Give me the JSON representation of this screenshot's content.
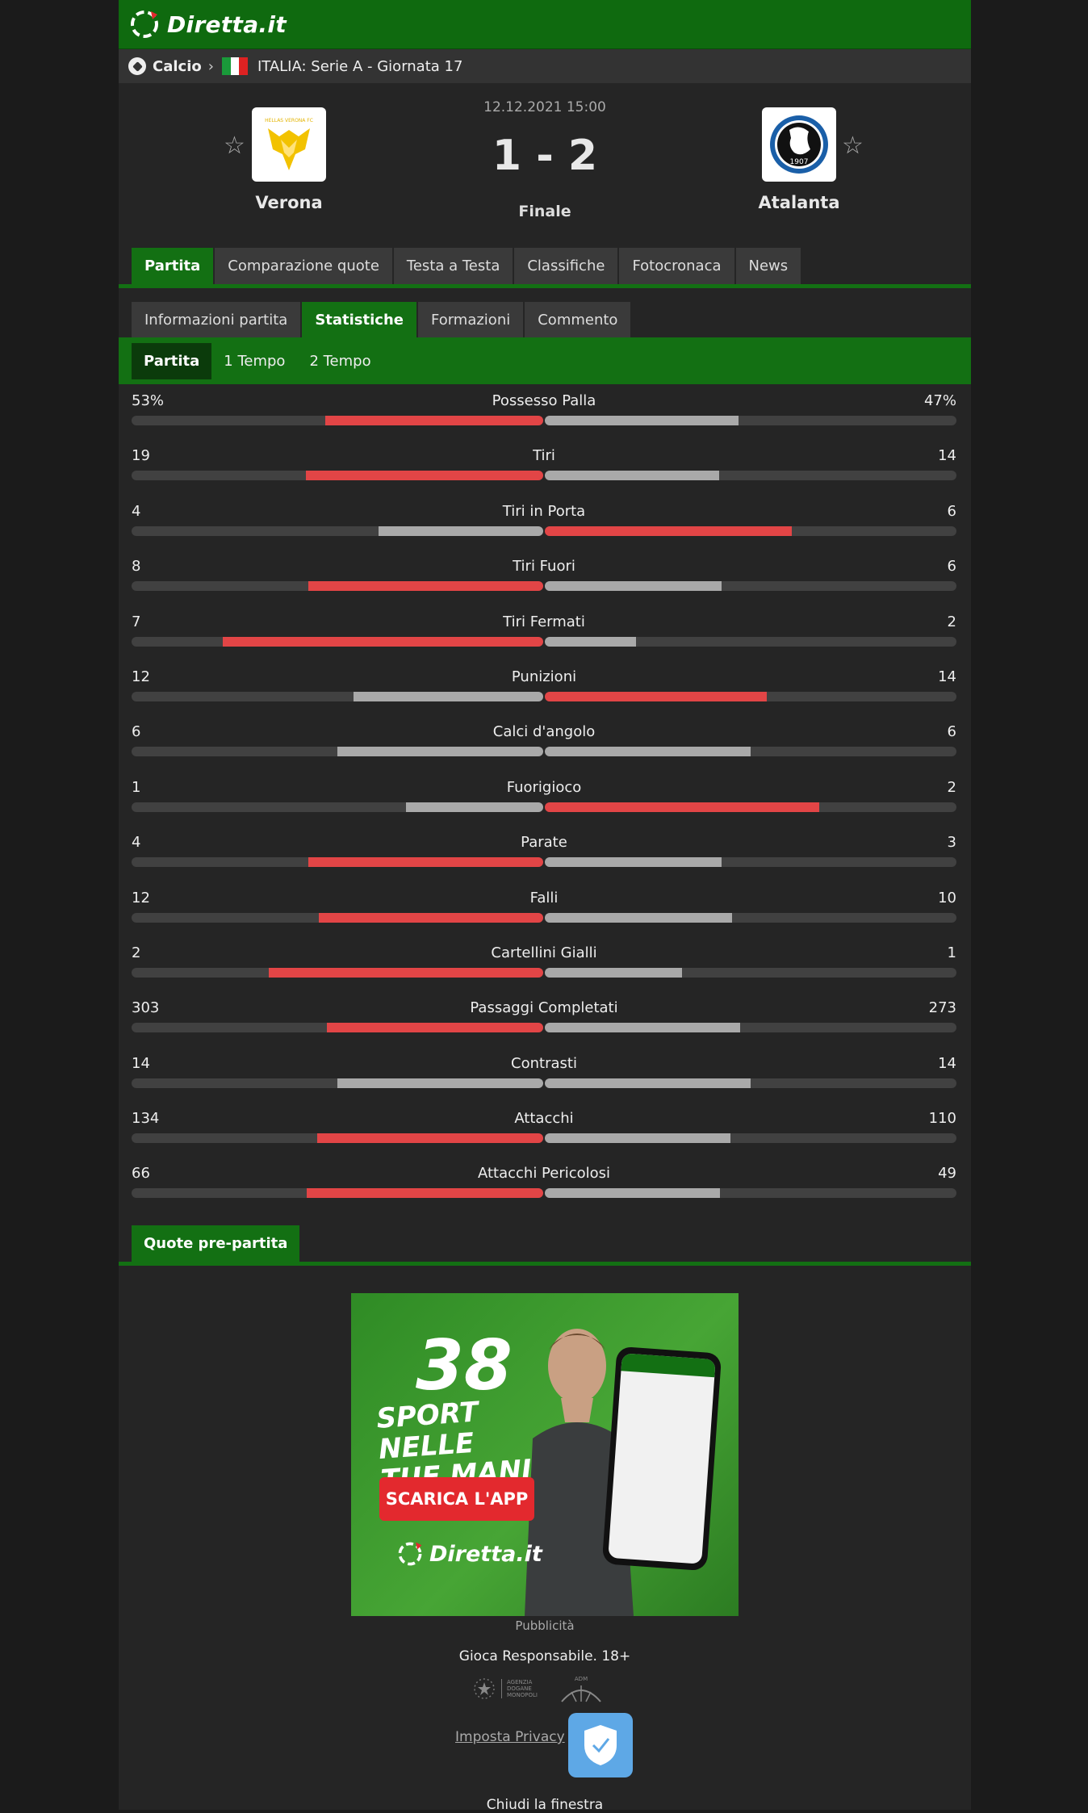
{
  "header": {
    "logo_text": "Diretta.it"
  },
  "breadcrumb": {
    "sport": "Calcio",
    "competition": "ITALIA: Serie A - Giornata 17"
  },
  "colors": {
    "accent": "#137013",
    "win": "#e24546",
    "lose": "#a9a9a9"
  },
  "match": {
    "datetime": "12.12.2021 15:00",
    "score": "1 - 2",
    "status": "Finale",
    "home": {
      "name": "Verona",
      "logo_icon": "verona-crest"
    },
    "away": {
      "name": "Atalanta",
      "logo_icon": "atalanta-crest"
    }
  },
  "tabs": [
    "Partita",
    "Comparazione quote",
    "Testa a Testa",
    "Classifiche",
    "Fotocronaca",
    "News"
  ],
  "tabs_active": 0,
  "subtabs": [
    "Informazioni partita",
    "Statistiche",
    "Formazioni",
    "Commento"
  ],
  "subtabs_active": 1,
  "periods": [
    "Partita",
    "1 Tempo",
    "2 Tempo"
  ],
  "periods_active": 0,
  "stats": [
    {
      "label": "Possesso Palla",
      "home": "53%",
      "away": "47%",
      "home_share": 0.53,
      "away_share": 0.47
    },
    {
      "label": "Tiri",
      "home": "19",
      "away": "14",
      "home_share": 0.5758,
      "away_share": 0.4242
    },
    {
      "label": "Tiri in Porta",
      "home": "4",
      "away": "6",
      "home_share": 0.4,
      "away_share": 0.6
    },
    {
      "label": "Tiri Fuori",
      "home": "8",
      "away": "6",
      "home_share": 0.5714,
      "away_share": 0.4286
    },
    {
      "label": "Tiri Fermati",
      "home": "7",
      "away": "2",
      "home_share": 0.7778,
      "away_share": 0.2222
    },
    {
      "label": "Punizioni",
      "home": "12",
      "away": "14",
      "home_share": 0.4615,
      "away_share": 0.5385
    },
    {
      "label": "Calci d'angolo",
      "home": "6",
      "away": "6",
      "home_share": 0.5,
      "away_share": 0.5
    },
    {
      "label": "Fuorigioco",
      "home": "1",
      "away": "2",
      "home_share": 0.3333,
      "away_share": 0.6667
    },
    {
      "label": "Parate",
      "home": "4",
      "away": "3",
      "home_share": 0.5714,
      "away_share": 0.4286
    },
    {
      "label": "Falli",
      "home": "12",
      "away": "10",
      "home_share": 0.5455,
      "away_share": 0.4545
    },
    {
      "label": "Cartellini Gialli",
      "home": "2",
      "away": "1",
      "home_share": 0.6667,
      "away_share": 0.3333
    },
    {
      "label": "Passaggi Completati",
      "home": "303",
      "away": "273",
      "home_share": 0.526,
      "away_share": 0.474
    },
    {
      "label": "Contrasti",
      "home": "14",
      "away": "14",
      "home_share": 0.5,
      "away_share": 0.5
    },
    {
      "label": "Attacchi",
      "home": "134",
      "away": "110",
      "home_share": 0.5492,
      "away_share": 0.4508
    },
    {
      "label": "Attacchi Pericolosi",
      "home": "66",
      "away": "49",
      "home_share": 0.5739,
      "away_share": 0.4261
    }
  ],
  "odds_tab": "Quote pre-partita",
  "ad": {
    "number": "38",
    "headline": "SPORT NELLE TUE MANI",
    "cta": "SCARICA L'APP",
    "brand": "Diretta.it"
  },
  "footer": {
    "ad_label": "Pubblicità",
    "responsible": "Gioca Responsabile. 18+",
    "agency": "AGENZIA DOGANE MONOPOLI",
    "adm": "ADM",
    "privacy": "Imposta Privacy",
    "close": "Chiudi la finestra"
  }
}
